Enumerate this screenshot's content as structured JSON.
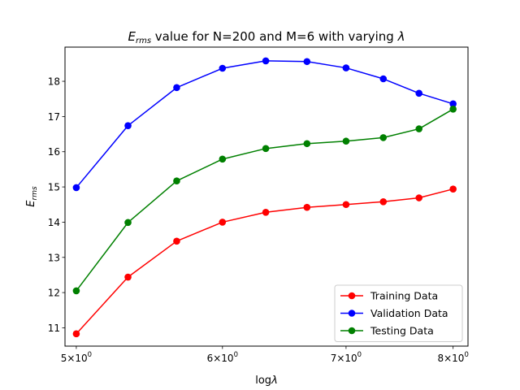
{
  "chart_data": {
    "type": "line",
    "title": {
      "main_italic": "E",
      "main_sub": "rms",
      "rest": " value for N=200 and M=6 with varying ",
      "lambda": "λ"
    },
    "xlabel": {
      "prefix": "log",
      "symbol": "λ"
    },
    "ylabel": {
      "main": "E",
      "sub": "rms"
    },
    "x_scale": "log",
    "xlim": [
      4.93,
      8.15
    ],
    "ylim": [
      10.48,
      18.97
    ],
    "x_ticks": [
      {
        "value": 5,
        "base": "5×10",
        "exp": "0"
      },
      {
        "value": 6,
        "base": "6×10",
        "exp": "0"
      },
      {
        "value": 7,
        "base": "7×10",
        "exp": "0"
      },
      {
        "value": 8,
        "base": "8×10",
        "exp": "0"
      }
    ],
    "y_ticks": [
      11,
      12,
      13,
      14,
      15,
      16,
      17,
      18
    ],
    "x": [
      5.0,
      5.333,
      5.667,
      6.0,
      6.333,
      6.667,
      7.0,
      7.333,
      7.667,
      8.0
    ],
    "series": [
      {
        "name": "Training Data",
        "color": "#ff0000",
        "values": [
          10.83,
          12.44,
          13.46,
          14.0,
          14.28,
          14.42,
          14.5,
          14.58,
          14.69,
          14.94
        ]
      },
      {
        "name": "Validation Data",
        "color": "#0000ff",
        "values": [
          14.98,
          16.74,
          17.82,
          18.37,
          18.58,
          18.56,
          18.38,
          18.07,
          17.66,
          17.36
        ]
      },
      {
        "name": "Testing Data",
        "color": "#008000",
        "values": [
          12.05,
          13.99,
          15.17,
          15.79,
          16.09,
          16.23,
          16.3,
          16.4,
          16.65,
          17.21
        ]
      }
    ],
    "legend_position": "lower-right",
    "grid": false
  }
}
